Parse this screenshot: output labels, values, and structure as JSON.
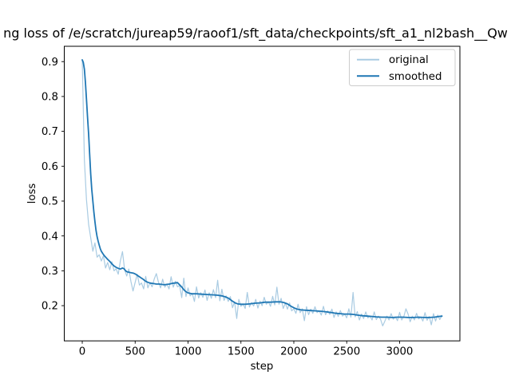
{
  "chart_data": {
    "type": "line",
    "title": "ng loss of /e/scratch/jureap59/raoof1/sft_data/checkpoints/sft_a1_nl2bash__Qw",
    "xlabel": "step",
    "ylabel": "loss",
    "xlim": [
      -170,
      3570
    ],
    "ylim": [
      0.099,
      0.944
    ],
    "xticks": [
      0,
      500,
      1000,
      1500,
      2000,
      2500,
      3000
    ],
    "yticks": [
      0.2,
      0.3,
      0.4,
      0.5,
      0.6,
      0.7,
      0.8,
      0.9
    ],
    "grid": false,
    "background_color": "#ffffff",
    "legend": {
      "position": "upper right",
      "entries": [
        {
          "label": "original",
          "color": "#a9cbe2"
        },
        {
          "label": "smoothed",
          "color": "#1f77b4"
        }
      ]
    },
    "series": [
      {
        "name": "original",
        "color": "#a9cbe2",
        "linewidth": 1.2,
        "x_start": 0,
        "x_step": 20,
        "values": [
          0.905,
          0.617,
          0.504,
          0.433,
          0.395,
          0.356,
          0.38,
          0.339,
          0.346,
          0.328,
          0.343,
          0.308,
          0.324,
          0.303,
          0.326,
          0.3,
          0.306,
          0.29,
          0.328,
          0.355,
          0.304,
          0.285,
          0.305,
          0.269,
          0.242,
          0.267,
          0.29,
          0.259,
          0.265,
          0.248,
          0.284,
          0.251,
          0.266,
          0.254,
          0.276,
          0.292,
          0.268,
          0.251,
          0.276,
          0.253,
          0.262,
          0.248,
          0.283,
          0.253,
          0.27,
          0.254,
          0.258,
          0.223,
          0.279,
          0.226,
          0.251,
          0.228,
          0.235,
          0.212,
          0.254,
          0.222,
          0.237,
          0.224,
          0.245,
          0.215,
          0.237,
          0.221,
          0.246,
          0.223,
          0.273,
          0.214,
          0.247,
          0.215,
          0.228,
          0.212,
          0.226,
          0.194,
          0.211,
          0.163,
          0.218,
          0.198,
          0.205,
          0.192,
          0.238,
          0.196,
          0.209,
          0.199,
          0.218,
          0.193,
          0.213,
          0.2,
          0.224,
          0.204,
          0.211,
          0.198,
          0.227,
          0.202,
          0.253,
          0.204,
          0.221,
          0.192,
          0.207,
          0.19,
          0.208,
          0.185,
          0.191,
          0.178,
          0.204,
          0.18,
          0.191,
          0.157,
          0.197,
          0.174,
          0.19,
          0.178,
          0.197,
          0.18,
          0.185,
          0.173,
          0.198,
          0.174,
          0.185,
          0.175,
          0.19,
          0.166,
          0.182,
          0.169,
          0.186,
          0.17,
          0.176,
          0.165,
          0.191,
          0.167,
          0.238,
          0.168,
          0.183,
          0.159,
          0.176,
          0.163,
          0.182,
          0.165,
          0.17,
          0.159,
          0.182,
          0.16,
          0.17,
          0.161,
          0.142,
          0.155,
          0.17,
          0.159,
          0.177,
          0.161,
          0.168,
          0.157,
          0.181,
          0.159,
          0.169,
          0.191,
          0.176,
          0.154,
          0.17,
          0.159,
          0.178,
          0.162,
          0.167,
          0.156,
          0.18,
          0.158,
          0.169,
          0.145,
          0.177,
          0.156,
          0.173,
          0.16,
          0.172
        ]
      },
      {
        "name": "smoothed",
        "color": "#1f77b4",
        "linewidth": 1.8,
        "points": [
          [
            0,
            0.905
          ],
          [
            10,
            0.898
          ],
          [
            20,
            0.878
          ],
          [
            30,
            0.84
          ],
          [
            40,
            0.792
          ],
          [
            50,
            0.742
          ],
          [
            60,
            0.692
          ],
          [
            70,
            0.634
          ],
          [
            80,
            0.578
          ],
          [
            90,
            0.534
          ],
          [
            100,
            0.5
          ],
          [
            110,
            0.468
          ],
          [
            120,
            0.441
          ],
          [
            130,
            0.417
          ],
          [
            140,
            0.398
          ],
          [
            150,
            0.385
          ],
          [
            160,
            0.374
          ],
          [
            170,
            0.364
          ],
          [
            180,
            0.356
          ],
          [
            195,
            0.349
          ],
          [
            210,
            0.343
          ],
          [
            225,
            0.338
          ],
          [
            240,
            0.333
          ],
          [
            260,
            0.327
          ],
          [
            280,
            0.32
          ],
          [
            300,
            0.314
          ],
          [
            320,
            0.31
          ],
          [
            340,
            0.307
          ],
          [
            360,
            0.305
          ],
          [
            380,
            0.308
          ],
          [
            395,
            0.306
          ],
          [
            410,
            0.3
          ],
          [
            425,
            0.297
          ],
          [
            440,
            0.296
          ],
          [
            455,
            0.295
          ],
          [
            470,
            0.294
          ],
          [
            485,
            0.293
          ],
          [
            500,
            0.291
          ],
          [
            515,
            0.288
          ],
          [
            530,
            0.285
          ],
          [
            545,
            0.282
          ],
          [
            560,
            0.279
          ],
          [
            575,
            0.276
          ],
          [
            590,
            0.272
          ],
          [
            605,
            0.269
          ],
          [
            620,
            0.267
          ],
          [
            640,
            0.265
          ],
          [
            660,
            0.264
          ],
          [
            680,
            0.263
          ],
          [
            700,
            0.262
          ],
          [
            725,
            0.262
          ],
          [
            750,
            0.261
          ],
          [
            775,
            0.26
          ],
          [
            800,
            0.261
          ],
          [
            825,
            0.262
          ],
          [
            850,
            0.264
          ],
          [
            875,
            0.265
          ],
          [
            900,
            0.266
          ],
          [
            920,
            0.26
          ],
          [
            945,
            0.252
          ],
          [
            965,
            0.244
          ],
          [
            985,
            0.239
          ],
          [
            1005,
            0.236
          ],
          [
            1040,
            0.234
          ],
          [
            1080,
            0.234
          ],
          [
            1130,
            0.233
          ],
          [
            1180,
            0.232
          ],
          [
            1230,
            0.231
          ],
          [
            1280,
            0.23
          ],
          [
            1320,
            0.228
          ],
          [
            1355,
            0.225
          ],
          [
            1385,
            0.221
          ],
          [
            1415,
            0.214
          ],
          [
            1445,
            0.208
          ],
          [
            1470,
            0.205
          ],
          [
            1500,
            0.204
          ],
          [
            1540,
            0.204
          ],
          [
            1580,
            0.205
          ],
          [
            1630,
            0.207
          ],
          [
            1680,
            0.208
          ],
          [
            1730,
            0.21
          ],
          [
            1780,
            0.21
          ],
          [
            1830,
            0.211
          ],
          [
            1870,
            0.211
          ],
          [
            1905,
            0.209
          ],
          [
            1940,
            0.205
          ],
          [
            1970,
            0.199
          ],
          [
            2000,
            0.194
          ],
          [
            2030,
            0.19
          ],
          [
            2065,
            0.188
          ],
          [
            2110,
            0.187
          ],
          [
            2160,
            0.186
          ],
          [
            2210,
            0.185
          ],
          [
            2260,
            0.184
          ],
          [
            2310,
            0.182
          ],
          [
            2360,
            0.18
          ],
          [
            2400,
            0.178
          ],
          [
            2440,
            0.177
          ],
          [
            2480,
            0.176
          ],
          [
            2520,
            0.176
          ],
          [
            2560,
            0.175
          ],
          [
            2600,
            0.173
          ],
          [
            2650,
            0.171
          ],
          [
            2700,
            0.17
          ],
          [
            2740,
            0.169
          ],
          [
            2780,
            0.168
          ],
          [
            2830,
            0.167
          ],
          [
            2880,
            0.167
          ],
          [
            2930,
            0.166
          ],
          [
            2980,
            0.167
          ],
          [
            3030,
            0.167
          ],
          [
            3080,
            0.166
          ],
          [
            3130,
            0.166
          ],
          [
            3180,
            0.167
          ],
          [
            3230,
            0.166
          ],
          [
            3280,
            0.166
          ],
          [
            3330,
            0.167
          ],
          [
            3370,
            0.169
          ],
          [
            3400,
            0.17
          ]
        ]
      }
    ]
  }
}
